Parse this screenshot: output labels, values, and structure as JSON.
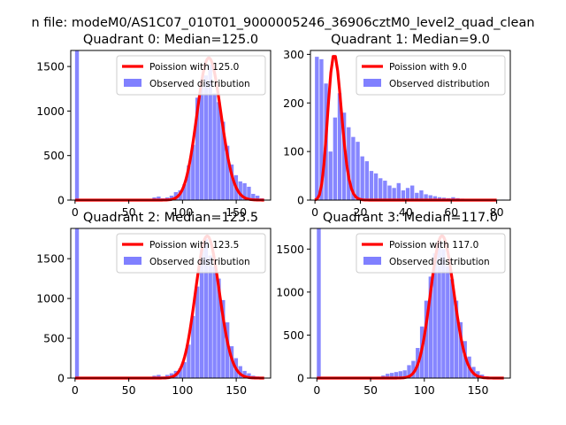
{
  "figure": {
    "suptitle": "n file: modeM0/AS1C07_010T01_9000005246_36906cztM0_level2_quad_clean"
  },
  "colors": {
    "observed": "#8080ff",
    "poisson": "#ff0000",
    "axis": "#000000",
    "legend_border": "#cccccc"
  },
  "chart_data": [
    {
      "type": "bar",
      "title": "Quadrant 0: Median=125.0",
      "median": 125.0,
      "xlim": [
        -4,
        182
      ],
      "ylim": [
        0,
        1680
      ],
      "xticks": [
        0,
        50,
        100,
        150
      ],
      "yticks": [
        0,
        500,
        1000,
        1500
      ],
      "bin_width": 3.6,
      "legend": [
        "Poission with 125.0",
        "Observed distribution"
      ],
      "bins_x": [
        0,
        72,
        76,
        80,
        84,
        88,
        92,
        96,
        100,
        104,
        108,
        112,
        116,
        120,
        124,
        128,
        132,
        136,
        140,
        144,
        148,
        152,
        156,
        160,
        164,
        168,
        172
      ],
      "bins_y": [
        1680,
        30,
        40,
        20,
        30,
        50,
        90,
        110,
        180,
        390,
        620,
        1150,
        1270,
        1400,
        1520,
        1200,
        1100,
        880,
        610,
        400,
        280,
        210,
        190,
        150,
        70,
        50,
        20
      ]
    },
    {
      "type": "bar",
      "title": "Quadrant 1: Median=9.0",
      "median": 9.0,
      "xlim": [
        -2,
        86
      ],
      "ylim": [
        0,
        308
      ],
      "xticks": [
        0,
        20,
        40,
        60,
        80
      ],
      "yticks": [
        0,
        100,
        200,
        300
      ],
      "bin_width": 1.7,
      "legend": [
        "Poission with 9.0",
        "Observed distribution"
      ],
      "bins_x": [
        0,
        2,
        4,
        6,
        8,
        10,
        12,
        14,
        16,
        18,
        20,
        22,
        24,
        26,
        28,
        30,
        32,
        34,
        36,
        38,
        40,
        42,
        44,
        46,
        48,
        50,
        52,
        54,
        56,
        58,
        60,
        62,
        64,
        66,
        68,
        70,
        72,
        74,
        76,
        78,
        80,
        82
      ],
      "bins_y": [
        295,
        290,
        240,
        100,
        170,
        220,
        180,
        150,
        130,
        120,
        90,
        80,
        60,
        55,
        45,
        40,
        30,
        25,
        35,
        20,
        25,
        30,
        15,
        20,
        12,
        10,
        8,
        6,
        5,
        4,
        6,
        4,
        3,
        2,
        2,
        1,
        1,
        1,
        0,
        1,
        0,
        1
      ]
    },
    {
      "type": "bar",
      "title": "Quadrant 2: Median=123.5",
      "median": 123.5,
      "xlim": [
        -4,
        182
      ],
      "ylim": [
        0,
        1880
      ],
      "xticks": [
        0,
        50,
        100,
        150
      ],
      "yticks": [
        0,
        500,
        1000,
        1500
      ],
      "bin_width": 3.6,
      "legend": [
        "Poission with 123.5",
        "Observed distribution"
      ],
      "bins_x": [
        0,
        72,
        76,
        80,
        84,
        88,
        92,
        96,
        100,
        104,
        108,
        112,
        116,
        120,
        124,
        128,
        132,
        136,
        140,
        144,
        148,
        152,
        156,
        160,
        164,
        168,
        172
      ],
      "bins_y": [
        1880,
        30,
        40,
        20,
        40,
        60,
        90,
        120,
        200,
        420,
        780,
        1150,
        1620,
        1750,
        1540,
        1400,
        1250,
        980,
        700,
        400,
        250,
        150,
        90,
        60,
        30,
        20,
        10
      ]
    },
    {
      "type": "bar",
      "title": "Quadrant 3: Median=117.0",
      "median": 117.0,
      "xlim": [
        -6,
        180
      ],
      "ylim": [
        0,
        1740
      ],
      "xticks": [
        0,
        50,
        100,
        150
      ],
      "yticks": [
        0,
        500,
        1000,
        1500
      ],
      "bin_width": 3.6,
      "legend": [
        "Poission with 117.0",
        "Observed distribution"
      ],
      "bins_x": [
        0,
        60,
        64,
        68,
        72,
        76,
        80,
        84,
        88,
        92,
        96,
        100,
        104,
        108,
        112,
        116,
        120,
        124,
        128,
        132,
        136,
        140,
        144,
        148,
        152,
        156
      ],
      "bins_y": [
        1740,
        30,
        50,
        60,
        70,
        80,
        90,
        150,
        200,
        350,
        600,
        900,
        1180,
        1450,
        1600,
        1500,
        1300,
        1150,
        900,
        650,
        430,
        250,
        130,
        80,
        40,
        20
      ]
    }
  ]
}
